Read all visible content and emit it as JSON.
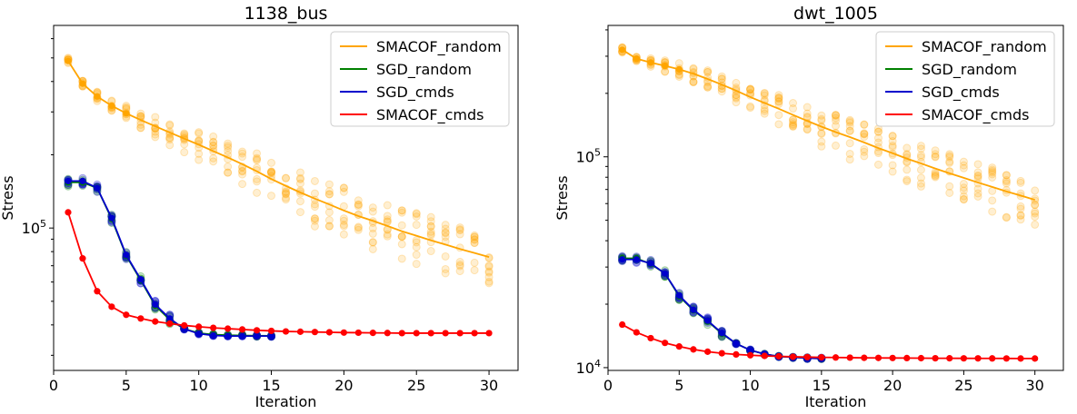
{
  "chart_data": [
    {
      "type": "line",
      "title": "1138_bus",
      "xlabel": "Iteration",
      "ylabel": "Stress",
      "yscale": "log",
      "xlim": [
        0,
        32
      ],
      "ylim": [
        26000,
        680000
      ],
      "xticks": [
        0,
        5,
        10,
        15,
        20,
        25,
        30
      ],
      "yticks": [
        100000
      ],
      "ytick_labels": [
        "10^5"
      ],
      "legend": "top-right",
      "series": [
        {
          "name": "SMACOF_random",
          "color": "#ffa500",
          "x": [
            1,
            2,
            3,
            4,
            5,
            6,
            7,
            8,
            9,
            10,
            11,
            12,
            13,
            14,
            15,
            16,
            17,
            18,
            19,
            20,
            21,
            22,
            23,
            24,
            25,
            26,
            27,
            28,
            29,
            30
          ],
          "y": [
            486000,
            392000,
            347000,
            318000,
            296000,
            278000,
            262000,
            247000,
            233000,
            220000,
            207000,
            195000,
            183000,
            171000,
            159000,
            149000,
            140000,
            132000,
            125000,
            118000,
            112000,
            107000,
            102000,
            97000,
            93000,
            89000,
            85500,
            82000,
            79000,
            76000
          ],
          "markers_first_n": 5
        },
        {
          "name": "SGD_random",
          "color": "#008000",
          "x": [
            1,
            2,
            3,
            4,
            5,
            6,
            7,
            8,
            9,
            10,
            11,
            12,
            13,
            14,
            15
          ],
          "y": [
            154000,
            154000,
            146000,
            109000,
            77000,
            61000,
            48000,
            42000,
            38500,
            37000,
            36500,
            36300,
            36200,
            36100,
            36050
          ]
        },
        {
          "name": "SGD_cmds",
          "color": "#0000cc",
          "x": [
            1,
            2,
            3,
            4,
            5,
            6,
            7,
            8,
            9,
            10,
            11,
            12,
            13,
            14,
            15
          ],
          "y": [
            156000,
            156000,
            146000,
            110000,
            77500,
            61500,
            48500,
            42500,
            38500,
            36800,
            36200,
            36000,
            36000,
            36000,
            36000
          ]
        },
        {
          "name": "SMACOF_cmds",
          "color": "#ff0000",
          "x": [
            1,
            2,
            3,
            4,
            5,
            6,
            7,
            8,
            9,
            10,
            11,
            12,
            13,
            14,
            15,
            16,
            17,
            18,
            19,
            20,
            21,
            22,
            23,
            24,
            25,
            26,
            27,
            28,
            29,
            30
          ],
          "y": [
            116000,
            75000,
            55000,
            47500,
            44000,
            42500,
            41300,
            40500,
            39800,
            39300,
            38900,
            38600,
            38300,
            38000,
            37800,
            37600,
            37500,
            37400,
            37300,
            37200,
            37150,
            37100,
            37050,
            37000,
            37000,
            37000,
            37000,
            37000,
            37000,
            37000
          ]
        }
      ]
    },
    {
      "type": "line",
      "title": "dwt_1005",
      "xlabel": "Iteration",
      "ylabel": "Stress",
      "yscale": "log",
      "xlim": [
        0,
        32
      ],
      "ylim": [
        9700,
        420000
      ],
      "xticks": [
        0,
        5,
        10,
        15,
        20,
        25,
        30
      ],
      "yticks": [
        10000,
        100000
      ],
      "ytick_labels": [
        "10^4",
        "10^5"
      ],
      "legend": "top-right",
      "series": [
        {
          "name": "SMACOF_random",
          "color": "#ffa500",
          "x": [
            1,
            2,
            3,
            4,
            5,
            6,
            7,
            8,
            9,
            10,
            11,
            12,
            13,
            14,
            15,
            16,
            17,
            18,
            19,
            20,
            21,
            22,
            23,
            24,
            25,
            26,
            27,
            28,
            29,
            30
          ],
          "y": [
            322000,
            292000,
            280000,
            270000,
            260000,
            248000,
            234000,
            220000,
            206000,
            192000,
            180000,
            169000,
            158000,
            148000,
            139000,
            131000,
            124000,
            117000,
            110000,
            104000,
            98000,
            93000,
            88000,
            83500,
            79500,
            75500,
            72000,
            68500,
            65500,
            62500
          ],
          "markers_first_n": 5
        },
        {
          "name": "SGD_random",
          "color": "#008000",
          "x": [
            1,
            2,
            3,
            4,
            5,
            6,
            7,
            8,
            9,
            10,
            11,
            12,
            13,
            14,
            15
          ],
          "y": [
            33000,
            33000,
            31000,
            28000,
            21800,
            18700,
            16600,
            14500,
            13000,
            12100,
            11600,
            11300,
            11200,
            11100,
            11050
          ]
        },
        {
          "name": "SGD_cmds",
          "color": "#0000cc",
          "x": [
            1,
            2,
            3,
            4,
            5,
            6,
            7,
            8,
            9,
            10,
            11,
            12,
            13,
            14,
            15
          ],
          "y": [
            32600,
            32600,
            31200,
            28000,
            22000,
            18800,
            16700,
            14600,
            13000,
            12100,
            11600,
            11300,
            11200,
            11100,
            11050
          ]
        },
        {
          "name": "SMACOF_cmds",
          "color": "#ff0000",
          "x": [
            1,
            2,
            3,
            4,
            5,
            6,
            7,
            8,
            9,
            10,
            11,
            12,
            13,
            14,
            15,
            16,
            17,
            18,
            19,
            20,
            21,
            22,
            23,
            24,
            25,
            26,
            27,
            28,
            29,
            30
          ],
          "y": [
            16000,
            14700,
            13800,
            13100,
            12600,
            12200,
            11900,
            11700,
            11550,
            11450,
            11370,
            11310,
            11260,
            11220,
            11190,
            11170,
            11150,
            11130,
            11120,
            11110,
            11100,
            11090,
            11080,
            11075,
            11070,
            11065,
            11060,
            11055,
            11050,
            11050
          ]
        }
      ]
    }
  ]
}
